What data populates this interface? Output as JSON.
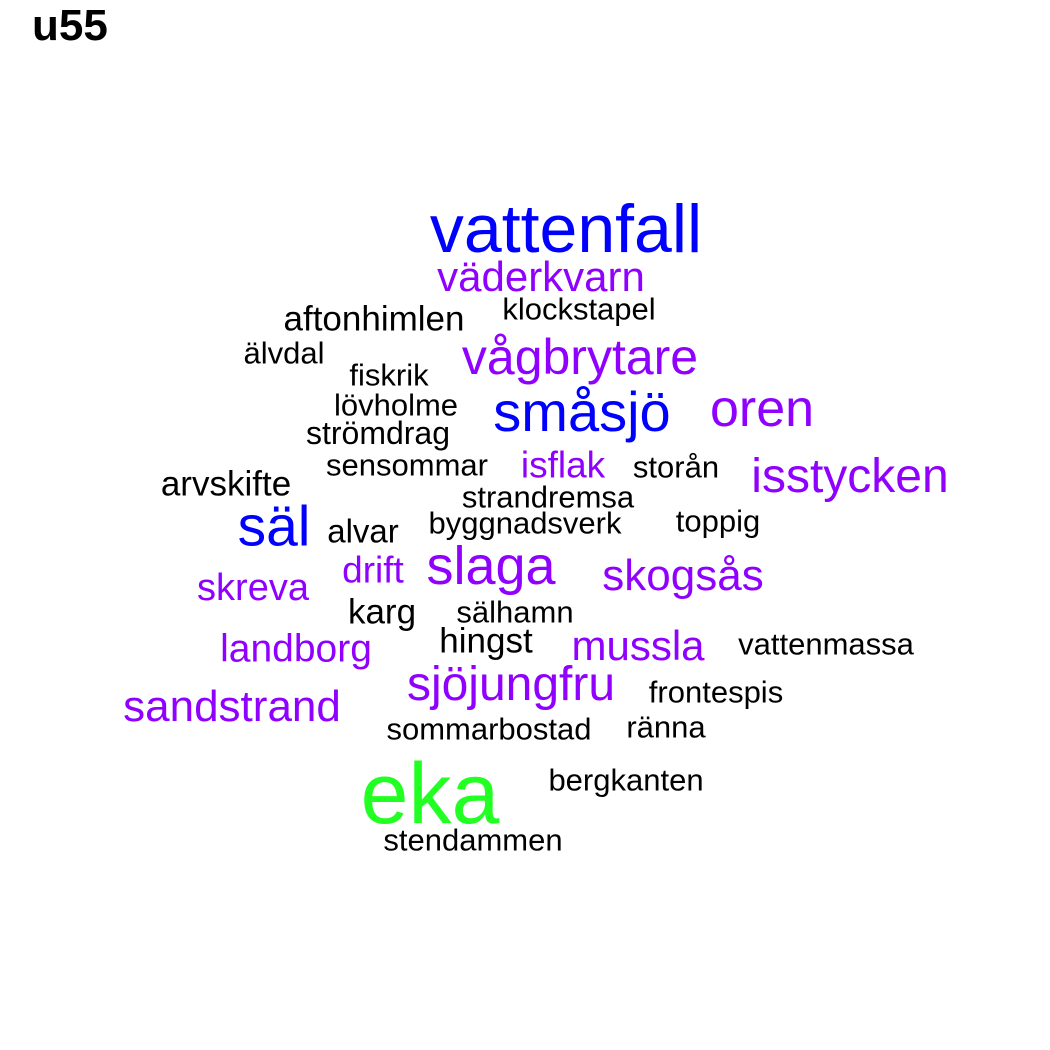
{
  "title": "u55",
  "colors": {
    "black": "#000000",
    "purple": "#8f00ff",
    "blue": "#0000ff",
    "green": "#22ff22"
  },
  "words": [
    {
      "text": "vattenfall",
      "color": "blue"
    },
    {
      "text": "väderkvarn",
      "color": "purple"
    },
    {
      "text": "aftonhimlen",
      "color": "black"
    },
    {
      "text": "klockstapel",
      "color": "black"
    },
    {
      "text": "älvdal",
      "color": "black"
    },
    {
      "text": "vågbrytare",
      "color": "purple"
    },
    {
      "text": "fiskrik",
      "color": "black"
    },
    {
      "text": "lövholme",
      "color": "black"
    },
    {
      "text": "småsjö",
      "color": "blue"
    },
    {
      "text": "oren",
      "color": "purple"
    },
    {
      "text": "strömdrag",
      "color": "black"
    },
    {
      "text": "sensommar",
      "color": "black"
    },
    {
      "text": "isflak",
      "color": "purple"
    },
    {
      "text": "storån",
      "color": "black"
    },
    {
      "text": "isstycken",
      "color": "purple"
    },
    {
      "text": "arvskifte",
      "color": "black"
    },
    {
      "text": "strandremsa",
      "color": "black"
    },
    {
      "text": "säl",
      "color": "blue"
    },
    {
      "text": "alvar",
      "color": "black"
    },
    {
      "text": "byggnadsverk",
      "color": "black"
    },
    {
      "text": "toppig",
      "color": "black"
    },
    {
      "text": "drift",
      "color": "purple"
    },
    {
      "text": "slaga",
      "color": "purple"
    },
    {
      "text": "skogsås",
      "color": "purple"
    },
    {
      "text": "skreva",
      "color": "purple"
    },
    {
      "text": "karg",
      "color": "black"
    },
    {
      "text": "sälhamn",
      "color": "black"
    },
    {
      "text": "hingst",
      "color": "black"
    },
    {
      "text": "mussla",
      "color": "purple"
    },
    {
      "text": "vattenmassa",
      "color": "black"
    },
    {
      "text": "landborg",
      "color": "purple"
    },
    {
      "text": "sjöjungfru",
      "color": "purple"
    },
    {
      "text": "frontespis",
      "color": "black"
    },
    {
      "text": "sandstrand",
      "color": "purple"
    },
    {
      "text": "sommarbostad",
      "color": "black"
    },
    {
      "text": "ränna",
      "color": "black"
    },
    {
      "text": "eka",
      "color": "green"
    },
    {
      "text": "bergkanten",
      "color": "black"
    },
    {
      "text": "stendammen",
      "color": "black"
    }
  ]
}
